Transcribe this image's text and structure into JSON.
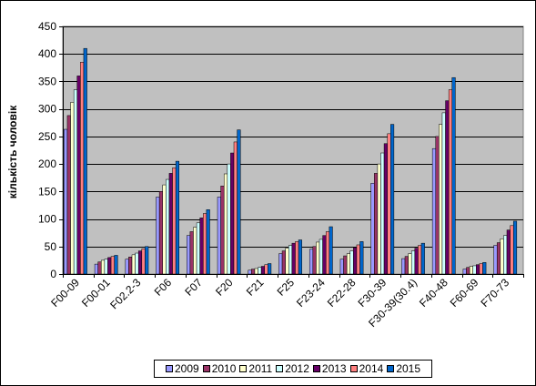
{
  "chart_data": {
    "type": "bar",
    "title": "",
    "xlabel": "",
    "ylabel": "кількість чоловік",
    "ylim": [
      0,
      450
    ],
    "yticks": [
      0,
      50,
      100,
      150,
      200,
      250,
      300,
      350,
      400,
      450
    ],
    "grid": true,
    "legend_position": "bottom",
    "plot_background": "#c0c0c0",
    "categories": [
      "F00-09",
      "F00-01",
      "F02.2-3",
      "F06",
      "F07",
      "F20",
      "F21",
      "F25",
      "F23-24",
      "F22-28",
      "F30-39",
      "F30-39(30.4)",
      "F40-48",
      "F60-69",
      "F70-73"
    ],
    "series": [
      {
        "name": "2009",
        "color": "#9999ff",
        "values": [
          263,
          18,
          27,
          140,
          70,
          140,
          7,
          37,
          45,
          27,
          165,
          28,
          228,
          9,
          52
        ]
      },
      {
        "name": "2010",
        "color": "#993366",
        "values": [
          288,
          22,
          31,
          150,
          77,
          160,
          9,
          42,
          50,
          33,
          183,
          32,
          250,
          12,
          57
        ]
      },
      {
        "name": "2011",
        "color": "#ffffcc",
        "values": [
          312,
          25,
          35,
          162,
          85,
          182,
          10,
          47,
          58,
          37,
          200,
          37,
          272,
          14,
          64
        ]
      },
      {
        "name": "2012",
        "color": "#ccffff",
        "values": [
          335,
          27,
          38,
          172,
          93,
          200,
          12,
          52,
          63,
          42,
          220,
          42,
          293,
          15,
          70
        ]
      },
      {
        "name": "2013",
        "color": "#660066",
        "values": [
          360,
          30,
          42,
          183,
          102,
          220,
          14,
          56,
          70,
          48,
          237,
          47,
          315,
          17,
          80
        ]
      },
      {
        "name": "2014",
        "color": "#ff8080",
        "values": [
          385,
          32,
          46,
          193,
          110,
          240,
          17,
          59,
          77,
          53,
          255,
          52,
          335,
          19,
          88
        ]
      },
      {
        "name": "2015",
        "color": "#0066cc",
        "values": [
          410,
          34,
          50,
          205,
          117,
          262,
          19,
          62,
          86,
          59,
          272,
          56,
          357,
          21,
          96
        ]
      }
    ]
  }
}
